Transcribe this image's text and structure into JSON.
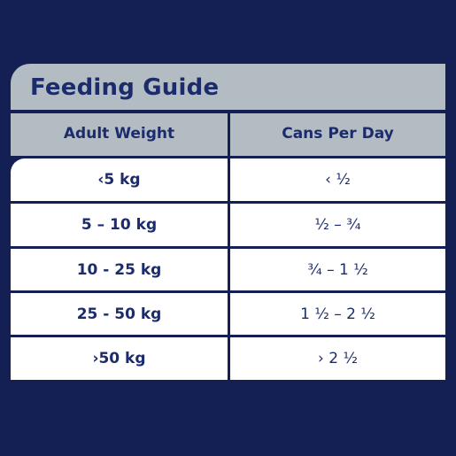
{
  "guide": {
    "title": "Feeding Guide",
    "headers": {
      "weight": "Adult Weight",
      "cans": "Cans Per Day"
    },
    "rows": [
      {
        "weight": "‹5 kg",
        "cans": "‹ ½"
      },
      {
        "weight": "5 – 10 kg",
        "cans": "½ – ¾"
      },
      {
        "weight": "10 - 25 kg",
        "cans": "¾ – 1 ½"
      },
      {
        "weight": "25 - 50 kg",
        "cans": "1 ½ – 2 ½"
      },
      {
        "weight": "›50 kg",
        "cans": "› 2 ½"
      }
    ]
  },
  "colors": {
    "background": "#142054",
    "header_gray": "#b4bcc3",
    "text_navy": "#1c2b6b",
    "cell_white": "#ffffff"
  }
}
